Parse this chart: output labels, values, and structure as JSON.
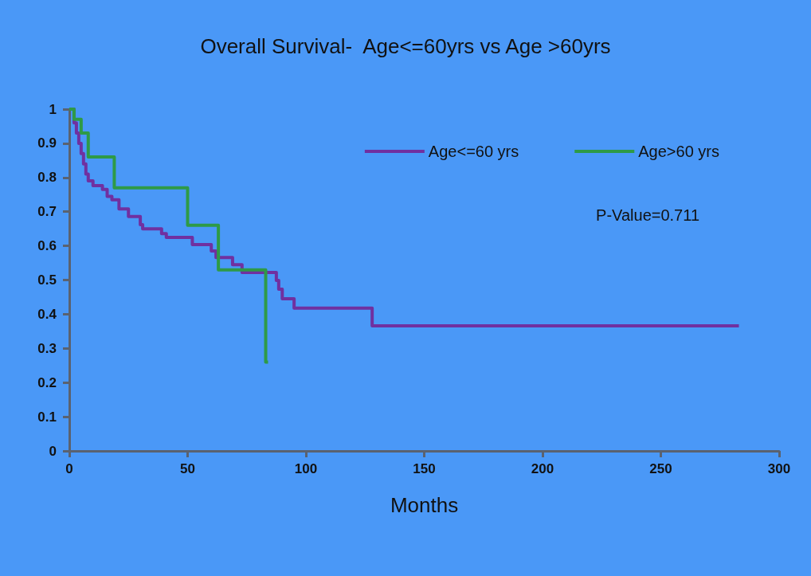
{
  "chart_data": {
    "type": "step",
    "title": "Overall Survival-  Age<=60yrs vs Age >60yrs",
    "xlabel": "Months",
    "series": [
      {
        "name": "Age<=60 yrs",
        "color": "#7030a0",
        "x": [
          0,
          2,
          3,
          4,
          5,
          6,
          7,
          8,
          10,
          14,
          16,
          18,
          21,
          25,
          30,
          31,
          39,
          41,
          52,
          60,
          62,
          69,
          73,
          87.5,
          88.5,
          90,
          95,
          128,
          283
        ],
        "values": [
          1,
          0.96,
          0.93,
          0.9,
          0.87,
          0.84,
          0.81,
          0.79,
          0.776,
          0.765,
          0.745,
          0.735,
          0.708,
          0.686,
          0.662,
          0.65,
          0.636,
          0.625,
          0.604,
          0.585,
          0.566,
          0.545,
          0.522,
          0.499,
          0.473,
          0.445,
          0.418,
          0.366,
          0.366
        ]
      },
      {
        "name": "Age>60 yrs",
        "color": "#2e9a47",
        "x": [
          0,
          2,
          5,
          8,
          19,
          50,
          63,
          83,
          84
        ],
        "values": [
          1,
          0.97,
          0.93,
          0.86,
          0.77,
          0.66,
          0.53,
          0.26,
          0.26
        ]
      }
    ],
    "xlim": [
      0,
      300
    ],
    "xticks": [
      0,
      50,
      100,
      150,
      200,
      250,
      300
    ],
    "ylim": [
      0,
      1
    ],
    "yticks": [
      0,
      0.1,
      0.2,
      0.3,
      0.4,
      0.5,
      0.6,
      0.7,
      0.8,
      0.9,
      1
    ],
    "grid": false,
    "legend": "top right",
    "marker": "none",
    "line_style": "solid",
    "annotations": [
      "P-Value=0.711"
    ]
  }
}
